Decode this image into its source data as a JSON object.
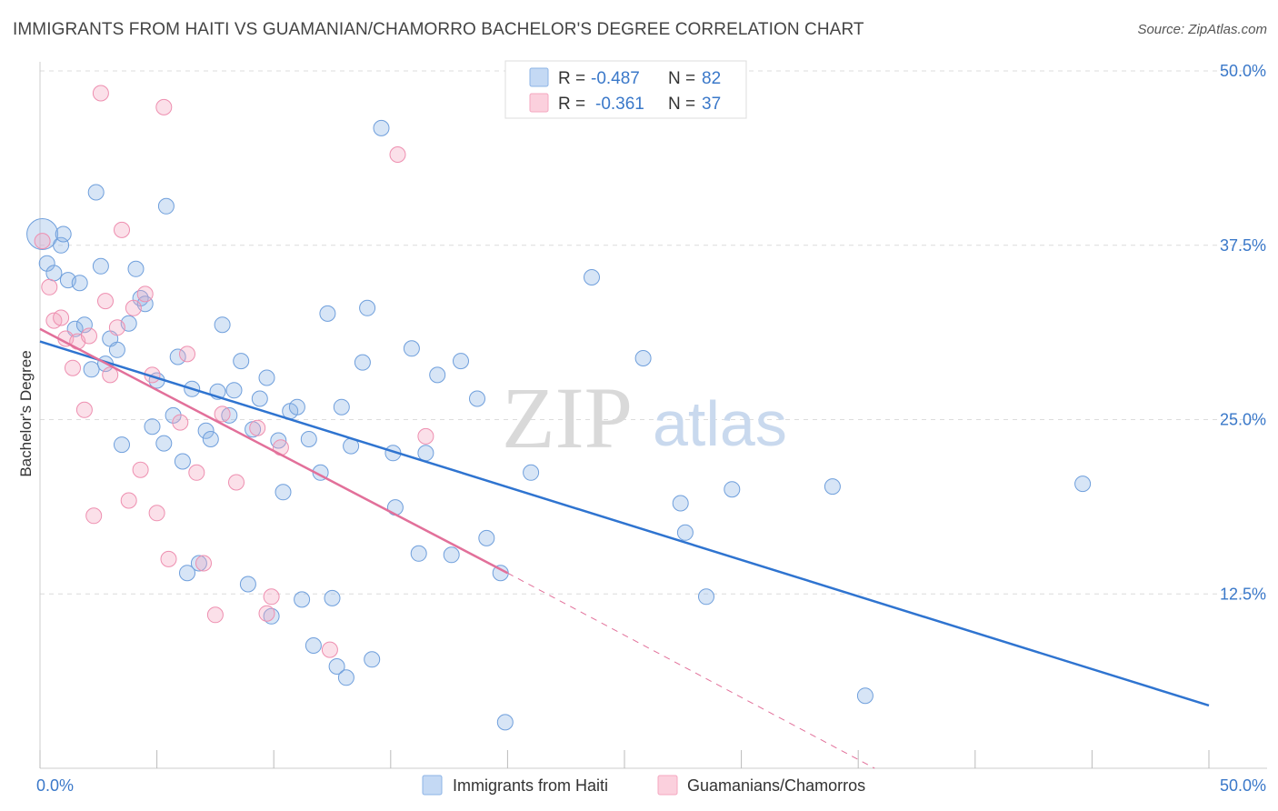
{
  "chart_data": {
    "type": "scatter",
    "title": "IMMIGRANTS FROM HAITI VS GUAMANIAN/CHAMORRO BACHELOR'S DEGREE CORRELATION CHART",
    "source": "Source: ZipAtlas.com",
    "xlabel": "",
    "ylabel": "Bachelor's Degree",
    "xlim": [
      0,
      50
    ],
    "ylim": [
      0,
      50
    ],
    "x_tick_labels": [
      "0.0%",
      "50.0%"
    ],
    "y_ticks": [
      12.5,
      25.0,
      37.5,
      50.0
    ],
    "y_tick_labels": [
      "12.5%",
      "25.0%",
      "37.5%",
      "50.0%"
    ],
    "grid": true,
    "watermark": {
      "zip": "ZIP",
      "atlas": "atlas"
    },
    "series": [
      {
        "name": "Immigrants from Haiti",
        "color": "#8db4e6",
        "line_color": "#2f74d0",
        "r_label": "R =",
        "r_value": "-0.487",
        "n_label": "N =",
        "n_value": "82",
        "trend": {
          "x0": 0,
          "y0": 30.6,
          "x1": 50,
          "y1": 4.5
        },
        "points": [
          [
            0.1,
            38.3
          ],
          [
            0.3,
            36.2
          ],
          [
            0.6,
            35.5
          ],
          [
            0.9,
            37.5
          ],
          [
            1.0,
            38.3
          ],
          [
            1.2,
            35.0
          ],
          [
            1.7,
            34.8
          ],
          [
            1.5,
            31.5
          ],
          [
            1.9,
            31.8
          ],
          [
            2.2,
            28.6
          ],
          [
            2.4,
            41.3
          ],
          [
            2.6,
            36.0
          ],
          [
            2.8,
            29.0
          ],
          [
            3.0,
            30.8
          ],
          [
            3.3,
            30.0
          ],
          [
            3.5,
            23.2
          ],
          [
            3.8,
            31.9
          ],
          [
            4.1,
            35.8
          ],
          [
            4.3,
            33.7
          ],
          [
            4.5,
            33.3
          ],
          [
            4.8,
            24.5
          ],
          [
            5.0,
            27.8
          ],
          [
            5.3,
            23.3
          ],
          [
            5.4,
            40.3
          ],
          [
            5.7,
            25.3
          ],
          [
            5.9,
            29.5
          ],
          [
            6.1,
            22.0
          ],
          [
            6.3,
            14.0
          ],
          [
            6.5,
            27.2
          ],
          [
            6.8,
            14.7
          ],
          [
            7.1,
            24.2
          ],
          [
            7.3,
            23.6
          ],
          [
            7.6,
            27.0
          ],
          [
            7.8,
            31.8
          ],
          [
            8.1,
            25.3
          ],
          [
            8.3,
            27.1
          ],
          [
            8.6,
            29.2
          ],
          [
            8.9,
            13.2
          ],
          [
            9.1,
            24.3
          ],
          [
            9.4,
            26.5
          ],
          [
            9.7,
            28.0
          ],
          [
            9.9,
            10.9
          ],
          [
            10.2,
            23.5
          ],
          [
            10.4,
            19.8
          ],
          [
            10.7,
            25.6
          ],
          [
            11.0,
            25.9
          ],
          [
            11.2,
            12.1
          ],
          [
            11.5,
            23.6
          ],
          [
            11.7,
            8.8
          ],
          [
            12.0,
            21.2
          ],
          [
            12.3,
            32.6
          ],
          [
            12.5,
            12.2
          ],
          [
            12.7,
            7.3
          ],
          [
            12.9,
            25.9
          ],
          [
            13.1,
            6.5
          ],
          [
            13.3,
            23.1
          ],
          [
            13.8,
            29.1
          ],
          [
            14.0,
            33.0
          ],
          [
            14.2,
            7.8
          ],
          [
            14.6,
            45.9
          ],
          [
            15.1,
            22.6
          ],
          [
            15.2,
            18.7
          ],
          [
            15.9,
            30.1
          ],
          [
            16.2,
            15.4
          ],
          [
            16.5,
            22.6
          ],
          [
            17.0,
            28.2
          ],
          [
            17.6,
            15.3
          ],
          [
            18.0,
            29.2
          ],
          [
            18.7,
            26.5
          ],
          [
            19.1,
            16.5
          ],
          [
            19.7,
            14.0
          ],
          [
            19.9,
            3.3
          ],
          [
            21.0,
            21.2
          ],
          [
            23.6,
            35.2
          ],
          [
            25.8,
            29.4
          ],
          [
            27.4,
            19.0
          ],
          [
            27.6,
            16.9
          ],
          [
            28.5,
            12.3
          ],
          [
            29.6,
            20.0
          ],
          [
            33.9,
            20.2
          ],
          [
            35.3,
            5.2
          ],
          [
            44.6,
            20.4
          ]
        ]
      },
      {
        "name": "Guamanians/Chamorros",
        "color": "#f4a7c0",
        "line_color": "#e2709a",
        "r_label": "R =",
        "r_value": "-0.361",
        "n_label": "N =",
        "n_value": "37",
        "trend": {
          "x0": 0,
          "y0": 31.5,
          "x1": 20,
          "y1": 14.0
        },
        "trend_extension": {
          "x0": 20,
          "y0": 14.0,
          "x1": 35.7,
          "y1": 0
        },
        "points": [
          [
            0.1,
            37.8
          ],
          [
            0.4,
            34.5
          ],
          [
            0.6,
            32.1
          ],
          [
            0.9,
            32.3
          ],
          [
            1.1,
            30.8
          ],
          [
            1.4,
            28.7
          ],
          [
            1.6,
            30.6
          ],
          [
            1.9,
            25.7
          ],
          [
            2.1,
            31.0
          ],
          [
            2.3,
            18.1
          ],
          [
            2.6,
            48.4
          ],
          [
            2.8,
            33.5
          ],
          [
            3.0,
            28.2
          ],
          [
            3.3,
            31.6
          ],
          [
            3.5,
            38.6
          ],
          [
            3.8,
            19.2
          ],
          [
            4.0,
            33.0
          ],
          [
            4.3,
            21.4
          ],
          [
            4.5,
            34.0
          ],
          [
            4.8,
            28.2
          ],
          [
            5.0,
            18.3
          ],
          [
            5.3,
            47.4
          ],
          [
            5.5,
            15.0
          ],
          [
            6.0,
            24.8
          ],
          [
            6.3,
            29.7
          ],
          [
            6.7,
            21.2
          ],
          [
            7.0,
            14.7
          ],
          [
            7.5,
            11.0
          ],
          [
            7.8,
            25.4
          ],
          [
            8.4,
            20.5
          ],
          [
            9.3,
            24.4
          ],
          [
            9.7,
            11.1
          ],
          [
            9.9,
            12.3
          ],
          [
            10.3,
            23.0
          ],
          [
            12.4,
            8.5
          ],
          [
            15.3,
            44.0
          ],
          [
            16.5,
            23.8
          ]
        ]
      }
    ]
  }
}
